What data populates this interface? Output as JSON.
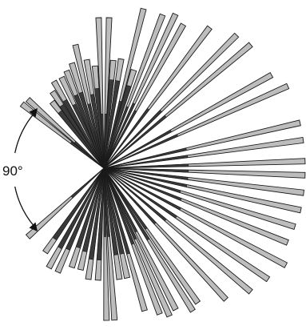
{
  "angle_label": "90°",
  "colors": {
    "bar_fill": "#bdbdbd",
    "bar_stroke": "#1a1a1a",
    "background": "#ffffff"
  },
  "rays": [
    {
      "angle": 142,
      "length": 130,
      "dark": 0.4
    },
    {
      "angle": 138,
      "length": 128,
      "dark": 0.38
    },
    {
      "angle": 128,
      "length": 105,
      "dark": 0.85
    },
    {
      "angle": 124,
      "length": 115,
      "dark": 0.82
    },
    {
      "angle": 120,
      "length": 125,
      "dark": 0.78
    },
    {
      "angle": 115,
      "length": 125,
      "dark": 0.7
    },
    {
      "angle": 111,
      "length": 130,
      "dark": 0.75
    },
    {
      "angle": 107,
      "length": 137,
      "dark": 0.72
    },
    {
      "angle": 103,
      "length": 158,
      "dark": 0.52
    },
    {
      "angle": 99,
      "length": 137,
      "dark": 0.68
    },
    {
      "angle": 95,
      "length": 128,
      "dark": 0.78
    },
    {
      "angle": 92,
      "length": 188,
      "dark": 0.36
    },
    {
      "angle": 88,
      "length": 188,
      "dark": 0.36
    },
    {
      "angle": 85,
      "length": 135,
      "dark": 0.82
    },
    {
      "angle": 81,
      "length": 138,
      "dark": 0.8
    },
    {
      "angle": 76,
      "length": 205,
      "dark": 0.42
    },
    {
      "angle": 73,
      "length": 128,
      "dark": 0.84
    },
    {
      "angle": 69,
      "length": 205,
      "dark": 0.4
    },
    {
      "angle": 65,
      "length": 212,
      "dark": 0.42
    },
    {
      "angle": 61,
      "length": 205,
      "dark": 0.4
    },
    {
      "angle": 53,
      "length": 220,
      "dark": 0.42
    },
    {
      "angle": 45,
      "length": 235,
      "dark": 0.43
    },
    {
      "angle": 40,
      "length": 240,
      "dark": 0.42
    },
    {
      "angle": 29,
      "length": 240,
      "dark": 0.4
    },
    {
      "angle": 24,
      "length": 252,
      "dark": 0.4
    },
    {
      "angle": 13,
      "length": 252,
      "dark": 0.42
    },
    {
      "angle": 8,
      "length": 252,
      "dark": 0.42
    },
    {
      "angle": 2,
      "length": 252,
      "dark": 0.42
    },
    {
      "angle": -2,
      "length": 252,
      "dark": 0.42
    },
    {
      "angle": -7,
      "length": 252,
      "dark": 0.42
    },
    {
      "angle": -12,
      "length": 252,
      "dark": 0.42
    },
    {
      "angle": -17,
      "length": 250,
      "dark": 0.4
    },
    {
      "angle": -22,
      "length": 248,
      "dark": 0.42
    },
    {
      "angle": -28,
      "length": 258,
      "dark": 0.42
    },
    {
      "angle": -34,
      "length": 248,
      "dark": 0.44
    },
    {
      "angle": -40,
      "length": 240,
      "dark": 0.42
    },
    {
      "angle": -47,
      "length": 224,
      "dark": 0.42
    },
    {
      "angle": -55,
      "length": 205,
      "dark": 0.45
    },
    {
      "angle": -58,
      "length": 210,
      "dark": 0.5
    },
    {
      "angle": -63,
      "length": 198,
      "dark": 0.45
    },
    {
      "angle": -66,
      "length": 202,
      "dark": 0.48
    },
    {
      "angle": -69,
      "length": 195,
      "dark": 0.52
    },
    {
      "angle": -74,
      "length": 185,
      "dark": 0.6
    },
    {
      "angle": -78,
      "length": 140,
      "dark": 0.78
    },
    {
      "angle": -82,
      "length": 140,
      "dark": 0.78
    },
    {
      "angle": -86,
      "length": 190,
      "dark": 0.45
    },
    {
      "angle": -89,
      "length": 190,
      "dark": 0.45
    },
    {
      "angle": -93,
      "length": 140,
      "dark": 0.82
    },
    {
      "angle": -98,
      "length": 140,
      "dark": 0.82
    },
    {
      "angle": -103,
      "length": 130,
      "dark": 0.82
    },
    {
      "angle": -108,
      "length": 130,
      "dark": 0.8
    },
    {
      "angle": -114,
      "length": 142,
      "dark": 0.78
    },
    {
      "angle": -119,
      "length": 142,
      "dark": 0.8
    },
    {
      "angle": -125,
      "length": 128,
      "dark": 0.84
    },
    {
      "angle": -138,
      "length": 128,
      "dark": 0.42
    }
  ]
}
